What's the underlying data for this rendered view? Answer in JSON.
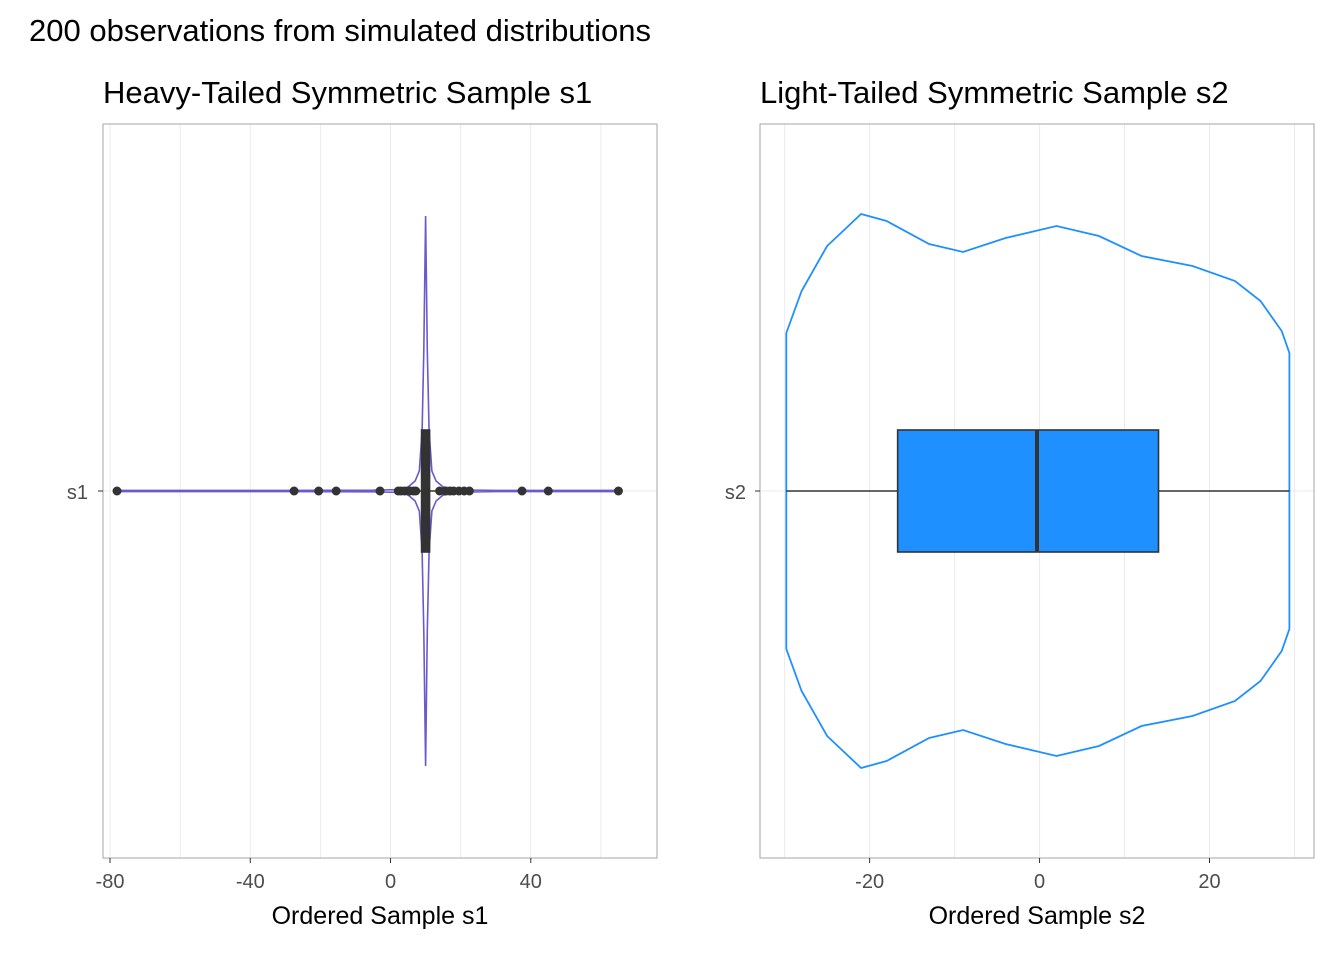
{
  "figure_title": "200 observations from simulated distributions",
  "chart_data": [
    {
      "type": "violin+boxplot",
      "title": "Heavy-Tailed Symmetric Sample s1",
      "xlabel": "Ordered Sample s1",
      "ylabel": "",
      "category": "s1",
      "xlim": [
        -82,
        76
      ],
      "xticks": [
        -80,
        -40,
        0,
        40
      ],
      "grid": true,
      "violin_color": "#6a5acd",
      "box_fill": "#333333",
      "box": {
        "q1": 9.3,
        "median": 10.0,
        "q3": 10.7,
        "whisker_low": 1.5,
        "whisker_high": 22.0
      },
      "outliers": [
        -78,
        -27.5,
        -20.5,
        -15.5,
        -3,
        2.2,
        3,
        4,
        5,
        5.5,
        6.5,
        7.2,
        14,
        15.5,
        17,
        18,
        19.5,
        21,
        22.5,
        37.5,
        45,
        65
      ]
    },
    {
      "type": "violin+boxplot",
      "title": "Light-Tailed Symmetric Sample s2",
      "xlabel": "Ordered Sample s2",
      "ylabel": "",
      "category": "s2",
      "xlim": [
        -32.9,
        32.3
      ],
      "xticks": [
        -20,
        0,
        20
      ],
      "grid": true,
      "violin_color": "#1e90ff",
      "box_fill": "#1e90ff",
      "box": {
        "q1": -16.7,
        "median": -0.3,
        "q3": 14.0,
        "whisker_low": -29.8,
        "whisker_high": 29.4
      },
      "outliers": []
    }
  ]
}
